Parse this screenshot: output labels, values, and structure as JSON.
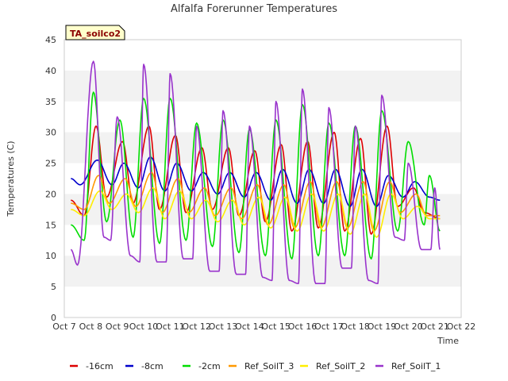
{
  "chart_data": {
    "type": "line",
    "title": "Alfalfa Forerunner Temperatures",
    "xlabel": "Time",
    "ylabel": "Temperatures (C)",
    "ylim": [
      0,
      45
    ],
    "yticks": [
      0,
      5,
      10,
      15,
      20,
      25,
      30,
      35,
      40,
      45
    ],
    "xlim": [
      7,
      22
    ],
    "xticks": [
      {
        "x": 7,
        "label": "Oct 7"
      },
      {
        "x": 8,
        "label": "Oct 8"
      },
      {
        "x": 9,
        "label": "Oct 9"
      },
      {
        "x": 10,
        "label": "Oct 10"
      },
      {
        "x": 11,
        "label": "Oct 11"
      },
      {
        "x": 12,
        "label": "Oct 12"
      },
      {
        "x": 13,
        "label": "Oct 13"
      },
      {
        "x": 14,
        "label": "Oct 14"
      },
      {
        "x": 15,
        "label": "Oct 15"
      },
      {
        "x": 16,
        "label": "Oct 16"
      },
      {
        "x": 17,
        "label": "Oct 17"
      },
      {
        "x": 18,
        "label": "Oct 18"
      },
      {
        "x": 19,
        "label": "Oct 19"
      },
      {
        "x": 20,
        "label": "Oct 20"
      },
      {
        "x": 21,
        "label": "Oct 21"
      },
      {
        "x": 22,
        "label": "Oct 22"
      }
    ],
    "grid": "horizontal bands",
    "legend_position": "bottom",
    "annotation": "TA_soilco2",
    "series": [
      {
        "name": "-16cm",
        "color": "#dd0000",
        "x": [
          7.25,
          7.75,
          8.2,
          8.6,
          9.2,
          9.6,
          10.2,
          10.6,
          11.2,
          11.6,
          12.2,
          12.6,
          13.2,
          13.6,
          14.2,
          14.6,
          15.2,
          15.6,
          16.2,
          16.6,
          17.2,
          17.6,
          18.2,
          18.6,
          19.2,
          19.6,
          20.2,
          20.6,
          21.2
        ],
        "y": [
          19,
          16.5,
          31,
          19.5,
          28.5,
          18.5,
          31,
          17.5,
          29.5,
          17,
          27.5,
          17.5,
          27.5,
          16.5,
          27,
          15.5,
          28,
          14,
          28.5,
          14.5,
          30,
          14,
          29,
          13.5,
          31,
          18,
          21,
          17,
          16
        ]
      },
      {
        "name": "-8cm",
        "color": "#0000cc",
        "x": [
          7.25,
          7.6,
          8.25,
          8.8,
          9.25,
          9.8,
          10.25,
          10.8,
          11.25,
          11.8,
          12.25,
          12.8,
          13.25,
          13.8,
          14.25,
          14.8,
          15.25,
          15.8,
          16.25,
          16.8,
          17.25,
          17.8,
          18.25,
          18.8,
          19.25,
          19.8,
          20.25,
          20.8,
          21.2
        ],
        "y": [
          22.5,
          21.5,
          25.5,
          21.5,
          25,
          21,
          26,
          20.5,
          25,
          20.5,
          23.5,
          20,
          23.5,
          19.5,
          23.5,
          19,
          24,
          18.5,
          24,
          18.5,
          24,
          18,
          24,
          18,
          23,
          19.5,
          22,
          19.5,
          19
        ]
      },
      {
        "name": "-2cm",
        "color": "#00dd00",
        "x": [
          7.25,
          7.75,
          8.1,
          8.6,
          9.1,
          9.6,
          10.0,
          10.6,
          11.0,
          11.6,
          12.0,
          12.6,
          13.0,
          13.6,
          14.0,
          14.6,
          15.0,
          15.6,
          16.0,
          16.6,
          17.0,
          17.6,
          18.0,
          18.6,
          19.0,
          19.6,
          20.0,
          20.6,
          20.8,
          21.2
        ],
        "y": [
          15,
          12.5,
          36.5,
          15.5,
          32,
          13,
          35.5,
          12,
          35.5,
          12.5,
          31.5,
          11.5,
          32,
          10.5,
          30.5,
          10,
          32,
          9.5,
          34.5,
          10,
          31.5,
          10,
          31,
          9.5,
          33.5,
          14,
          28.5,
          15,
          23,
          14
        ]
      },
      {
        "name": "Ref_SoilT_3",
        "color": "#ff9900",
        "x": [
          7.25,
          7.75,
          8.3,
          8.7,
          9.3,
          9.7,
          10.3,
          10.7,
          11.3,
          11.7,
          12.3,
          12.7,
          13.3,
          13.7,
          14.3,
          14.7,
          15.3,
          15.7,
          16.3,
          16.7,
          17.3,
          17.7,
          18.3,
          18.7,
          19.3,
          19.7,
          20.3,
          20.7,
          21.2
        ],
        "y": [
          18.5,
          17.5,
          23,
          18.5,
          22.5,
          18,
          23.5,
          17,
          22.5,
          17,
          21,
          16.5,
          21,
          16,
          21.5,
          15,
          21.5,
          14.5,
          22,
          14.5,
          22,
          14.5,
          22,
          14,
          22,
          17,
          20,
          16.5,
          16.5
        ]
      },
      {
        "name": "Ref_SoilT_2",
        "color": "#ffee00",
        "x": [
          7.25,
          7.75,
          8.35,
          8.8,
          9.35,
          9.8,
          10.35,
          10.8,
          11.35,
          11.8,
          12.35,
          12.8,
          13.35,
          13.8,
          14.35,
          14.8,
          15.35,
          15.8,
          16.35,
          16.8,
          17.35,
          17.8,
          18.35,
          18.8,
          19.35,
          19.8,
          20.35,
          20.8,
          21.2
        ],
        "y": [
          17.5,
          16.5,
          20.5,
          17.5,
          20,
          17,
          21,
          16,
          20.5,
          16,
          19,
          15.5,
          19,
          15,
          19.5,
          14.5,
          19.5,
          14,
          20,
          14,
          20,
          13.5,
          20,
          13,
          20,
          16,
          18,
          16,
          16
        ]
      },
      {
        "name": "Ref_SoilT_1",
        "color": "#9933cc",
        "x": [
          7.25,
          7.5,
          8.1,
          8.5,
          8.75,
          9.0,
          9.5,
          9.85,
          10.0,
          10.5,
          10.85,
          11.0,
          11.5,
          11.85,
          12.0,
          12.5,
          12.85,
          13.0,
          13.5,
          13.85,
          14.0,
          14.5,
          14.85,
          15.0,
          15.5,
          15.85,
          16.0,
          16.5,
          16.85,
          17.0,
          17.5,
          17.85,
          18.0,
          18.5,
          18.85,
          19.0,
          19.5,
          19.85,
          20.0,
          20.5,
          20.85,
          21.0,
          21.2
        ],
        "y": [
          11,
          8.5,
          41.5,
          13,
          12.5,
          32.5,
          10,
          9,
          41,
          9,
          9,
          39.5,
          9.5,
          9.5,
          31,
          7.5,
          7.5,
          33.5,
          7,
          7,
          31,
          6.5,
          6,
          35,
          6,
          5.5,
          37,
          5.5,
          5.5,
          34,
          8,
          8,
          31,
          6,
          5.5,
          36,
          13,
          12.5,
          25,
          11,
          11,
          21,
          11
        ]
      }
    ]
  }
}
